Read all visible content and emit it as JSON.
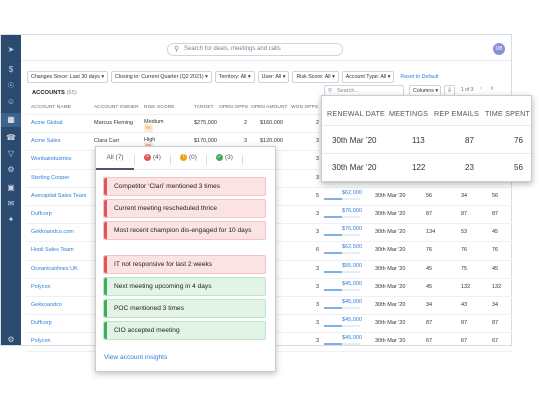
{
  "app": {
    "search_placeholder": "Search for deals, meetings and calls",
    "avatar_initials": "DB",
    "sidebar_icons": [
      "send-icon",
      "dollar-icon",
      "binoculars-icon",
      "people-icon",
      "dashboard-icon",
      "phone-icon",
      "funnel-icon",
      "gear-icon",
      "calendar-icon",
      "mail-icon",
      "handshake-icon",
      "settings-icon"
    ]
  },
  "filters": [
    "Changes Since: Last 30 days ▾",
    "Closing in: Current Quarter (Q2 2021) ▾",
    "Territory: All ▾",
    "User: All ▾",
    "Risk Score: All ▾",
    "Account Type: All ▾"
  ],
  "reset_label": "Reset to Default",
  "accounts": {
    "title": "ACCOUNTS",
    "count": "(65)",
    "search_placeholder": "Search...",
    "columns_label": "Columns ▾",
    "pager": "1 of 3"
  },
  "table": {
    "headers": {
      "name": "ACCOUNT NAME",
      "owner": "ACCOUNT OWNER",
      "risk": "RISK SCORE",
      "target": "TARGET",
      "opps": "OPEN OPPS",
      "amount": "OPEN AMOUNT",
      "won": "WON OPPS"
    },
    "rows": [
      {
        "name": "Acme Global",
        "owner": "Marcus Fleming",
        "risk_score": "66",
        "risk_label": "Medium",
        "target": "$275,000",
        "opps": "2",
        "amount": "$160,000",
        "won": "2",
        "value": "",
        "renewal": "",
        "meetings": "",
        "rep": "",
        "time": ""
      },
      {
        "name": "Acme Sales",
        "owner": "Clara Carr",
        "risk_score": "86",
        "risk_label": "High",
        "target": "$170,000",
        "opps": "3",
        "amount": "$120,000",
        "won": "3",
        "value": "",
        "renewal": "",
        "meetings": "",
        "rep": "",
        "time": ""
      },
      {
        "name": "Wonkaindustries",
        "owner": "",
        "risk_score": "",
        "risk_label": "",
        "target": "",
        "opps": "",
        "amount": "",
        "won": "3",
        "value": "",
        "renewal": "",
        "meetings": "",
        "rep": "",
        "time": ""
      },
      {
        "name": "Sterling Cooper",
        "owner": "",
        "risk_score": "",
        "risk_label": "",
        "target": "",
        "opps": "",
        "amount": "",
        "won": "3",
        "value": "",
        "renewal": "",
        "meetings": "",
        "rep": "",
        "time": ""
      },
      {
        "name": "Avecapital Sales Team",
        "owner": "",
        "risk_score": "",
        "risk_label": "",
        "target": "",
        "opps": "",
        "amount": "",
        "won": "5",
        "value": "$62,000",
        "value_pct": 0.5,
        "renewal": "30th Mar '20",
        "meetings": "56",
        "rep": "34",
        "time": "56"
      },
      {
        "name": "Duffcorp",
        "owner": "",
        "risk_score": "",
        "risk_label": "",
        "target": "",
        "opps": "",
        "amount": "",
        "won": "3",
        "value": "$76,000",
        "value_pct": 0.5,
        "renewal": "30th Mar '20",
        "meetings": "87",
        "rep": "87",
        "time": "87"
      },
      {
        "name": "Gekkoandco.com",
        "owner": "",
        "risk_score": "",
        "risk_label": "",
        "target": "",
        "opps": "",
        "amount": "",
        "won": "3",
        "value": "$76,000",
        "value_pct": 0.5,
        "renewal": "30th Mar '20",
        "meetings": "134",
        "rep": "53",
        "time": "45"
      },
      {
        "name": "Hooli Sales Team",
        "owner": "",
        "risk_score": "",
        "risk_label": "",
        "target": "",
        "opps": "",
        "amount": "",
        "won": "6",
        "value": "$62,500",
        "value_pct": 0.5,
        "renewal": "30th Mar '20",
        "meetings": "76",
        "rep": "76",
        "time": "76"
      },
      {
        "name": "Oceanicairlines UK",
        "owner": "",
        "risk_score": "",
        "risk_label": "",
        "target": "",
        "opps": "",
        "amount": "",
        "won": "3",
        "value": "$55,000",
        "value_pct": 0.5,
        "renewal": "30th Mar '20",
        "meetings": "45",
        "rep": "75",
        "time": "45"
      },
      {
        "name": "Polycon",
        "owner": "",
        "risk_score": "",
        "risk_label": "",
        "target": "",
        "opps": "",
        "amount": "",
        "won": "3",
        "value": "$45,000",
        "value_pct": 0.5,
        "renewal": "30th Mar '20",
        "meetings": "45",
        "rep": "132",
        "time": "132"
      },
      {
        "name": "Gekkoandco",
        "owner": "",
        "risk_score": "",
        "risk_label": "",
        "target": "",
        "opps": "",
        "amount": "",
        "won": "3",
        "value": "$45,000",
        "value_pct": 0.5,
        "renewal": "30th Mar '20",
        "meetings": "34",
        "rep": "43",
        "time": "34"
      },
      {
        "name": "Duffcorp",
        "owner": "",
        "risk_score": "",
        "risk_label": "",
        "target": "",
        "opps": "",
        "amount": "",
        "won": "3",
        "value": "$45,000",
        "value_pct": 0.5,
        "renewal": "30th Mar '20",
        "meetings": "87",
        "rep": "87",
        "time": "87"
      },
      {
        "name": "Polycon",
        "owner": "",
        "risk_score": "",
        "risk_label": "",
        "target": "",
        "opps": "",
        "amount": "",
        "won": "3",
        "value": "$45,000",
        "value_pct": 0.5,
        "renewal": "30th Mar '20",
        "meetings": "67",
        "rep": "67",
        "time": "67"
      }
    ]
  },
  "insights": {
    "tabs": [
      {
        "label": "All",
        "count": "(7)",
        "color": ""
      },
      {
        "label": "",
        "count": "(4)",
        "color": "#e05656"
      },
      {
        "label": "",
        "count": "(0)",
        "color": "#f0a020"
      },
      {
        "label": "",
        "count": "(3)",
        "color": "#3fae57"
      }
    ],
    "items": [
      {
        "text": "Competitor ‘Clari’ mentioned 3 times",
        "kind": "red"
      },
      {
        "text": "Current meeting rescheduled thrice",
        "kind": "red"
      },
      {
        "text": "Most recent champion dis-engaged for 10 days",
        "kind": "red"
      },
      {
        "text": "IT not responsive for last 2 weeks",
        "kind": "red"
      },
      {
        "text": "Next meeting upcoming in 4 days",
        "kind": "green"
      },
      {
        "text": "POC mentioned 3 times",
        "kind": "green"
      },
      {
        "text": "CIO accepted meeting",
        "kind": "green"
      }
    ],
    "view_link": "View account insights"
  },
  "engagement": {
    "headers": [
      "RENEWAL DATE",
      "MEETINGS",
      "REP EMAILS",
      "TIME SPENT"
    ],
    "rows": [
      [
        "30th Mar ’20",
        "113",
        "87",
        "76"
      ],
      [
        "30th Mar ’20",
        "122",
        "23",
        "56"
      ]
    ]
  },
  "colors": {
    "sidebar": "#2b4a6f",
    "link": "#2f7ed8",
    "risk_medium": "#f0a020",
    "risk_high": "#e05656"
  }
}
